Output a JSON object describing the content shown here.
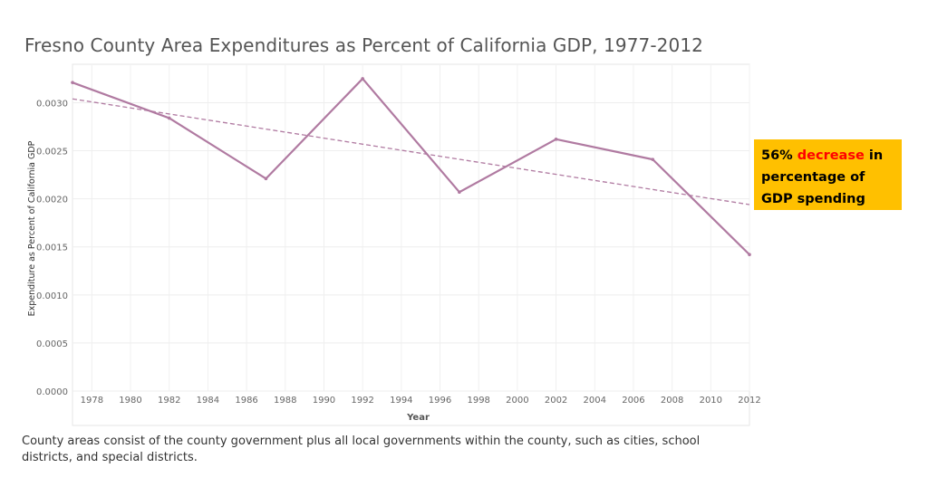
{
  "chart_data": {
    "type": "line",
    "title": "Fresno County Area Expenditures as Percent of California GDP, 1977-2012",
    "xlabel": "Year",
    "ylabel": "Expenditure as Percent of California GDP",
    "xlim": [
      1977,
      2012
    ],
    "ylim": [
      0,
      0.0034
    ],
    "x_ticks": [
      "1978",
      "1980",
      "1982",
      "1984",
      "1986",
      "1988",
      "1990",
      "1992",
      "1994",
      "1996",
      "1998",
      "2000",
      "2002",
      "2004",
      "2006",
      "2008",
      "2010",
      "2012"
    ],
    "y_ticks": [
      "0.0000",
      "0.0005",
      "0.0010",
      "0.0015",
      "0.0020",
      "0.0025",
      "0.0030"
    ],
    "grid": true,
    "series": [
      {
        "x": [
          1977,
          1982,
          1987,
          1992,
          1997,
          2002,
          2007,
          2012
        ],
        "values": [
          0.00321,
          0.00284,
          0.00221,
          0.00325,
          0.00207,
          0.00262,
          0.00241,
          0.00142
        ],
        "color": "#b07aa1"
      }
    ],
    "trend_line": {
      "style": "dashed",
      "x": [
        1977,
        2012
      ],
      "values": [
        0.00304,
        0.00194
      ],
      "color": "#b07aa1"
    }
  },
  "callout": {
    "before": "56% ",
    "highlight": "decrease",
    "after": " in percentage of GDP  spending",
    "background": "#ffc000",
    "highlight_color": "#ff0000"
  },
  "footnote": "County areas consist of the county government plus all local governments within the county, such as cities, school districts, and special districts."
}
